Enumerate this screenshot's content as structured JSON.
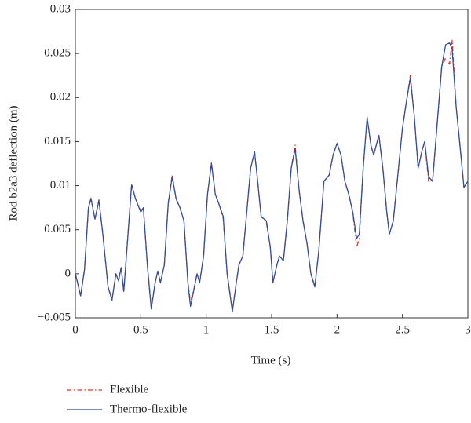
{
  "chart_data": {
    "type": "line",
    "xlabel": "Time (s)",
    "ylabel": "Rod b2a3 deflection (m)",
    "x": [
      0,
      0.02,
      0.04,
      0.07,
      0.1,
      0.12,
      0.15,
      0.18,
      0.21,
      0.25,
      0.28,
      0.31,
      0.33,
      0.35,
      0.37,
      0.4,
      0.43,
      0.46,
      0.5,
      0.52,
      0.55,
      0.58,
      0.61,
      0.63,
      0.65,
      0.68,
      0.71,
      0.74,
      0.77,
      0.8,
      0.83,
      0.86,
      0.88,
      0.91,
      0.93,
      0.95,
      0.98,
      1.01,
      1.04,
      1.07,
      1.1,
      1.13,
      1.16,
      1.2,
      1.23,
      1.25,
      1.28,
      1.31,
      1.34,
      1.37,
      1.39,
      1.42,
      1.46,
      1.49,
      1.51,
      1.54,
      1.56,
      1.59,
      1.62,
      1.65,
      1.68,
      1.71,
      1.74,
      1.77,
      1.8,
      1.83,
      1.86,
      1.9,
      1.94,
      1.97,
      2.0,
      2.03,
      2.06,
      2.09,
      2.12,
      2.15,
      2.17,
      2.2,
      2.23,
      2.26,
      2.28,
      2.32,
      2.35,
      2.38,
      2.4,
      2.43,
      2.46,
      2.5,
      2.53,
      2.56,
      2.59,
      2.62,
      2.65,
      2.67,
      2.7,
      2.73,
      2.76,
      2.8,
      2.83,
      2.86,
      2.88,
      2.91,
      2.94,
      2.97,
      3.0
    ],
    "series": [
      {
        "name": "Flexible",
        "color": "#e8332a",
        "dash": "6 3 1.5 3",
        "values": [
          0,
          -0.0012,
          -0.0025,
          0.0005,
          0.0075,
          0.0086,
          0.0062,
          0.0084,
          0.0045,
          -0.0015,
          -0.0029,
          0.0,
          -0.0008,
          0.0007,
          -0.002,
          0.004,
          0.0101,
          0.0085,
          0.0072,
          0.0074,
          0.001,
          -0.0038,
          -0.001,
          0.0003,
          -0.001,
          0.001,
          0.008,
          0.0112,
          0.0085,
          0.0074,
          0.006,
          -0.001,
          -0.0032,
          -0.0015,
          0.0,
          -0.001,
          0.002,
          0.009,
          0.0126,
          0.009,
          0.0078,
          0.0063,
          0.0,
          -0.0041,
          -0.001,
          0.001,
          0.002,
          0.007,
          0.012,
          0.0139,
          0.011,
          0.0065,
          0.0058,
          0.003,
          -0.001,
          0.001,
          0.002,
          0.0015,
          0.006,
          0.012,
          0.0146,
          0.0095,
          0.006,
          0.0035,
          0.0,
          -0.0013,
          0.0025,
          0.0105,
          0.0112,
          0.0135,
          0.0148,
          0.0135,
          0.0105,
          0.009,
          0.007,
          0.003,
          0.004,
          0.012,
          0.0178,
          0.0145,
          0.0135,
          0.0157,
          0.012,
          0.007,
          0.0045,
          0.006,
          0.0105,
          0.0165,
          0.0195,
          0.0225,
          0.018,
          0.012,
          0.014,
          0.015,
          0.0105,
          0.0105,
          0.016,
          0.0235,
          0.0245,
          0.0238,
          0.0265,
          0.019,
          0.0145,
          0.0098,
          0.0105
        ]
      },
      {
        "name": "Thermo-flexible",
        "color": "#2f4d9e",
        "dash": "none",
        "values": [
          0,
          -0.0012,
          -0.0025,
          0.0005,
          0.0075,
          0.0085,
          0.0062,
          0.0083,
          0.0045,
          -0.0015,
          -0.003,
          0.0,
          -0.0008,
          0.0007,
          -0.002,
          0.004,
          0.0101,
          0.0085,
          0.007,
          0.0075,
          0.001,
          -0.004,
          -0.001,
          0.0003,
          -0.001,
          0.001,
          0.008,
          0.011,
          0.0085,
          0.0075,
          0.006,
          -0.001,
          -0.0037,
          -0.0015,
          0.0,
          -0.001,
          0.002,
          0.009,
          0.0125,
          0.009,
          0.0078,
          0.0065,
          0.0,
          -0.0043,
          -0.001,
          0.001,
          0.002,
          0.007,
          0.012,
          0.0138,
          0.011,
          0.0065,
          0.006,
          0.003,
          -0.001,
          0.001,
          0.002,
          0.0015,
          0.006,
          0.012,
          0.0142,
          0.0095,
          0.006,
          0.0035,
          0.0,
          -0.0015,
          0.0025,
          0.0105,
          0.0112,
          0.0135,
          0.0148,
          0.0135,
          0.0105,
          0.009,
          0.007,
          0.004,
          0.0045,
          0.012,
          0.0177,
          0.0145,
          0.0135,
          0.0157,
          0.012,
          0.007,
          0.0045,
          0.006,
          0.0105,
          0.0165,
          0.0195,
          0.0222,
          0.018,
          0.012,
          0.014,
          0.015,
          0.011,
          0.0105,
          0.016,
          0.0235,
          0.026,
          0.0262,
          0.0255,
          0.019,
          0.0145,
          0.0098,
          0.0105
        ]
      }
    ],
    "xlim": [
      0,
      3
    ],
    "xticks": [
      0,
      0.5,
      1,
      1.5,
      2,
      2.5,
      3
    ],
    "ylim": [
      -0.005,
      0.03
    ],
    "yticks": [
      {
        "value": -0.005,
        "label": "−0.005"
      },
      0,
      0.005,
      0.01,
      0.015,
      0.02,
      0.025,
      0.03
    ],
    "grid": false,
    "legend": "bottom-left"
  }
}
